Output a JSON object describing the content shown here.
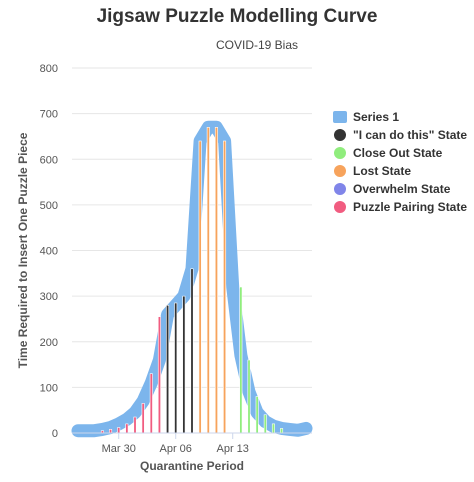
{
  "chart_data": {
    "type": "area",
    "title": "Jigsaw Puzzle Modelling Curve",
    "subtitle": "COVID-19 Bias",
    "xlabel": "Quarantine Period",
    "ylabel": "Time Required to Insert One Puzzle Piece",
    "ylim": [
      0,
      800
    ],
    "yticks": [
      0,
      100,
      200,
      300,
      400,
      500,
      600,
      700,
      800
    ],
    "xticks": [
      "Mar 30",
      "Apr 06",
      "Apr 13"
    ],
    "grid": true,
    "legend_position": "right",
    "series_main": {
      "name": "Series 1",
      "color": "#7cb5ec",
      "x": [
        "Mar 25",
        "Mar 26",
        "Mar 27",
        "Mar 28",
        "Mar 29",
        "Mar 30",
        "Mar 31",
        "Apr 01",
        "Apr 02",
        "Apr 03",
        "Apr 04",
        "Apr 05",
        "Apr 06",
        "Apr 07",
        "Apr 08",
        "Apr 09",
        "Apr 10",
        "Apr 11",
        "Apr 12",
        "Apr 13",
        "Apr 14",
        "Apr 15",
        "Apr 16",
        "Apr 17",
        "Apr 18",
        "Apr 19",
        "Apr 20",
        "Apr 21",
        "Apr 22"
      ],
      "values": [
        5,
        5,
        5,
        8,
        12,
        20,
        30,
        45,
        70,
        110,
        160,
        260,
        280,
        300,
        360,
        640,
        670,
        670,
        640,
        320,
        170,
        90,
        45,
        25,
        15,
        10,
        8,
        6,
        10
      ]
    },
    "state_series": [
      {
        "name": "\"I can do this\" State",
        "color": "#333333",
        "points": [
          {
            "x": "Apr 05",
            "y": 280
          },
          {
            "x": "Apr 06",
            "y": 285
          },
          {
            "x": "Apr 07",
            "y": 300
          },
          {
            "x": "Apr 08",
            "y": 360
          }
        ]
      },
      {
        "name": "Close Out State",
        "color": "#90ed7d",
        "points": [
          {
            "x": "Apr 14",
            "y": 320
          },
          {
            "x": "Apr 15",
            "y": 160
          },
          {
            "x": "Apr 16",
            "y": 80
          },
          {
            "x": "Apr 17",
            "y": 40
          },
          {
            "x": "Apr 18",
            "y": 20
          },
          {
            "x": "Apr 19",
            "y": 10
          }
        ]
      },
      {
        "name": "Lost State",
        "color": "#f7a35c",
        "points": [
          {
            "x": "Apr 09",
            "y": 640
          },
          {
            "x": "Apr 10",
            "y": 670
          },
          {
            "x": "Apr 11",
            "y": 670
          },
          {
            "x": "Apr 12",
            "y": 640
          }
        ]
      },
      {
        "name": "Overwhelm State",
        "color": "#8085e9",
        "points": []
      },
      {
        "name": "Puzzle Pairing State",
        "color": "#f15c80",
        "points": [
          {
            "x": "Mar 28",
            "y": 5
          },
          {
            "x": "Mar 29",
            "y": 8
          },
          {
            "x": "Mar 30",
            "y": 12
          },
          {
            "x": "Mar 31",
            "y": 20
          },
          {
            "x": "Apr 01",
            "y": 35
          },
          {
            "x": "Apr 02",
            "y": 65
          },
          {
            "x": "Apr 03",
            "y": 130
          },
          {
            "x": "Apr 04",
            "y": 255
          }
        ]
      }
    ]
  }
}
